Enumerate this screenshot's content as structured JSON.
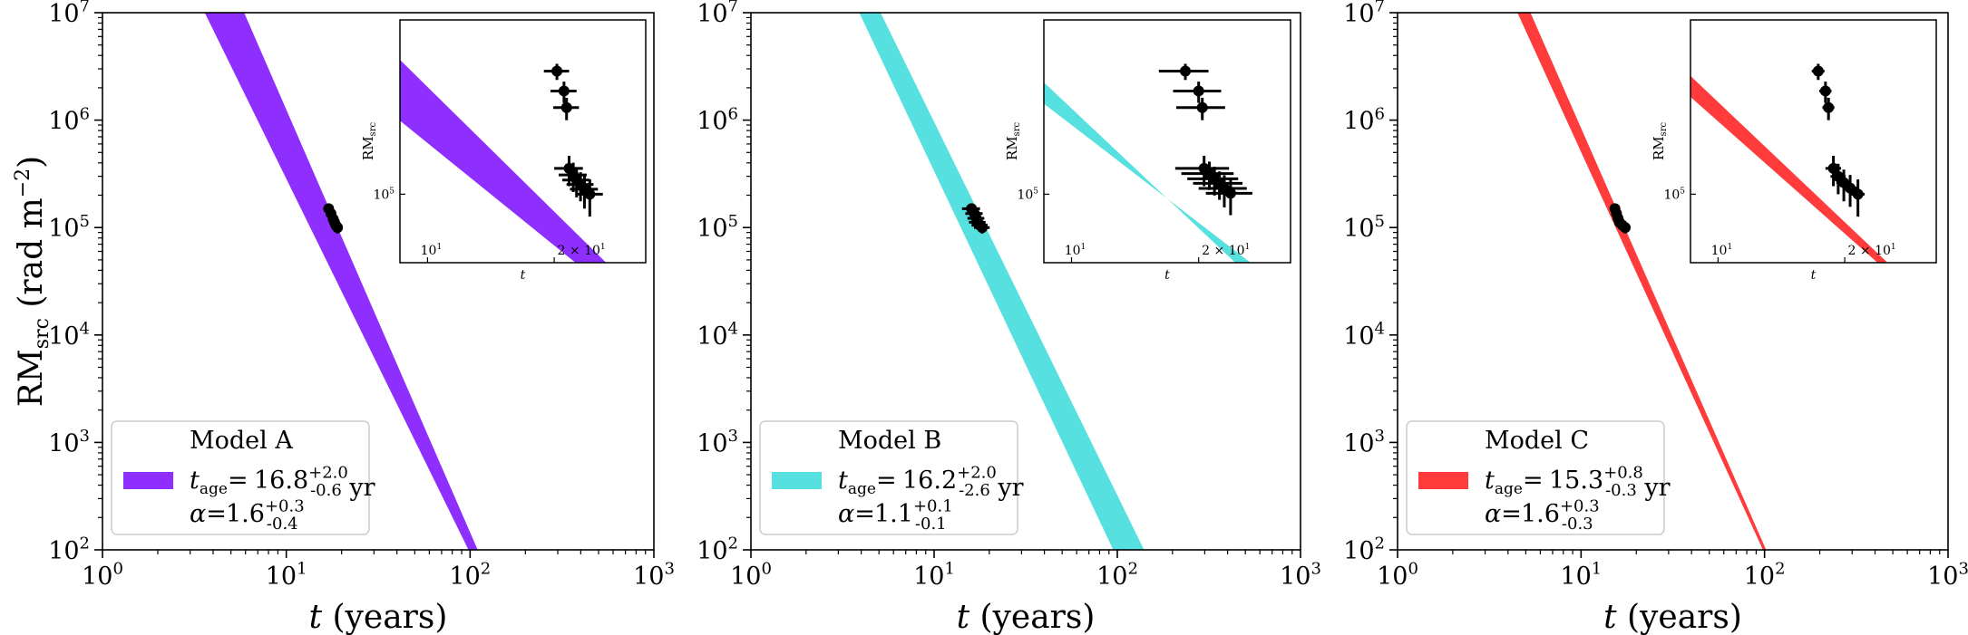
{
  "chart_data": [
    {
      "type": "area",
      "xlabel": "t (years)",
      "ylabel": "RM_src (rad m^-2)",
      "xscale": "log",
      "yscale": "log",
      "xlim": [
        1,
        1000
      ],
      "ylim": [
        100,
        10000000
      ],
      "x_ticks": [
        "10^0",
        "10^1",
        "10^2",
        "10^3"
      ],
      "y_ticks": [
        "10^2",
        "10^3",
        "10^4",
        "10^5",
        "10^6",
        "10^7"
      ],
      "legend": {
        "placement": "lower-left",
        "label": "Model A",
        "t_age": "16.8^{+2.0}_{-0.6} yr",
        "alpha": "1.6^{+0.3}_{-0.4}"
      },
      "band_color": "#8f2fff",
      "band": {
        "x": [
          3.6,
          110
        ],
        "upper": [
          10000000,
          100
        ],
        "x_lower": [
          5.9,
          98
        ],
        "lower": [
          10000000,
          100
        ]
      },
      "points": [
        {
          "t": 17.0,
          "rm": 150000,
          "xerr": 1.0,
          "yerr": 15000
        },
        {
          "t": 17.5,
          "rm": 135000,
          "xerr": 1.0,
          "yerr": 15000
        },
        {
          "t": 18.0,
          "rm": 120000,
          "xerr": 1.0,
          "yerr": 15000
        },
        {
          "t": 18.3,
          "rm": 112000,
          "xerr": 1.0,
          "yerr": 12000
        },
        {
          "t": 18.6,
          "rm": 105000,
          "xerr": 1.0,
          "yerr": 12000
        },
        {
          "t": 19.0,
          "rm": 100000,
          "xerr": 1.0,
          "yerr": 12000
        }
      ],
      "inset": {
        "xlim": [
          8.6,
          33
        ],
        "ylim": [
          21000,
          5300000
        ],
        "xlabel": "t",
        "ylabel": "RM_src",
        "x_ticks": [
          "10^1",
          "2 × 10^1"
        ],
        "y_ticks": [
          "10^5"
        ],
        "points": [
          {
            "t": 20.3,
            "rm": 1650000,
            "xerr": 1.4,
            "yerr": 300000
          },
          {
            "t": 21.1,
            "rm": 1050000,
            "xerr": 1.5,
            "yerr": 250000
          },
          {
            "t": 21.4,
            "rm": 720000,
            "xerr": 1.5,
            "yerr": 180000
          },
          {
            "t": 21.7,
            "rm": 180000,
            "xerr": 1.7,
            "yerr": 60000
          },
          {
            "t": 22.2,
            "rm": 155000,
            "xerr": 1.7,
            "yerr": 50000
          },
          {
            "t": 22.6,
            "rm": 138000,
            "xerr": 1.7,
            "yerr": 45000
          },
          {
            "t": 23.1,
            "rm": 125000,
            "xerr": 1.7,
            "yerr": 40000
          },
          {
            "t": 23.6,
            "rm": 112000,
            "xerr": 1.8,
            "yerr": 40000
          },
          {
            "t": 24.3,
            "rm": 100000,
            "xerr": 1.8,
            "yerr": 40000
          }
        ]
      }
    },
    {
      "type": "area",
      "xlabel": "t (years)",
      "ylabel": "",
      "xscale": "log",
      "yscale": "log",
      "xlim": [
        1,
        1000
      ],
      "ylim": [
        100,
        10000000
      ],
      "x_ticks": [
        "10^0",
        "10^1",
        "10^2",
        "10^3"
      ],
      "y_ticks": [
        "10^2",
        "10^3",
        "10^4",
        "10^5",
        "10^6",
        "10^7"
      ],
      "legend": {
        "placement": "lower-left",
        "label": "Model B",
        "t_age": "16.2^{+2.0}_{-2.6} yr",
        "alpha": "1.1^{+0.1}_{-0.1}"
      },
      "band_color": "#56e0e0",
      "band": {
        "x": [
          3.9,
          140
        ],
        "upper": [
          10000000,
          100
        ],
        "x_lower": [
          5.1,
          95
        ],
        "lower": [
          10000000,
          100
        ]
      },
      "points": [
        {
          "t": 16.0,
          "rm": 150000,
          "xerr": 1.8,
          "yerr": 15000
        },
        {
          "t": 16.6,
          "rm": 135000,
          "xerr": 1.8,
          "yerr": 15000
        },
        {
          "t": 17.0,
          "rm": 122000,
          "xerr": 1.8,
          "yerr": 15000
        },
        {
          "t": 17.3,
          "rm": 112000,
          "xerr": 1.8,
          "yerr": 12000
        },
        {
          "t": 17.8,
          "rm": 105000,
          "xerr": 1.8,
          "yerr": 12000
        },
        {
          "t": 18.3,
          "rm": 100000,
          "xerr": 1.8,
          "yerr": 12000
        }
      ],
      "inset": {
        "xlim": [
          8.6,
          33
        ],
        "ylim": [
          21000,
          5300000
        ],
        "xlabel": "t",
        "ylabel": "RM_src",
        "x_ticks": [
          "10^1",
          "2 × 10^1"
        ],
        "y_ticks": [
          "10^5"
        ],
        "points": [
          {
            "t": 18.6,
            "rm": 1650000,
            "xerr": 2.5,
            "yerr": 300000
          },
          {
            "t": 20.0,
            "rm": 1050000,
            "xerr": 2.6,
            "yerr": 250000
          },
          {
            "t": 20.4,
            "rm": 720000,
            "xerr": 2.7,
            "yerr": 180000
          },
          {
            "t": 20.6,
            "rm": 180000,
            "xerr": 3.0,
            "yerr": 60000
          },
          {
            "t": 21.2,
            "rm": 160000,
            "xerr": 3.0,
            "yerr": 50000
          },
          {
            "t": 21.8,
            "rm": 142000,
            "xerr": 3.0,
            "yerr": 45000
          },
          {
            "t": 22.4,
            "rm": 128000,
            "xerr": 3.0,
            "yerr": 40000
          },
          {
            "t": 23.0,
            "rm": 114000,
            "xerr": 3.0,
            "yerr": 40000
          },
          {
            "t": 23.8,
            "rm": 102000,
            "xerr": 3.0,
            "yerr": 40000
          }
        ]
      }
    },
    {
      "type": "area",
      "xlabel": "t (years)",
      "ylabel": "",
      "xscale": "log",
      "yscale": "log",
      "xlim": [
        1,
        1000
      ],
      "ylim": [
        100,
        10000000
      ],
      "x_ticks": [
        "10^0",
        "10^1",
        "10^2",
        "10^3"
      ],
      "y_ticks": [
        "10^2",
        "10^3",
        "10^4",
        "10^5",
        "10^6",
        "10^7"
      ],
      "legend": {
        "placement": "lower-left",
        "label": "Model C",
        "t_age": "15.3^{+0.8}_{-0.3} yr",
        "alpha": "1.6^{+0.3}_{-0.3}"
      },
      "band_color": "#ff3b3b",
      "band": {
        "x": [
          4.5,
          102
        ],
        "upper": [
          10000000,
          100
        ],
        "x_lower": [
          5.3,
          98
        ],
        "lower": [
          10000000,
          100
        ]
      },
      "points": [
        {
          "t": 15.3,
          "rm": 150000,
          "xerr": 0.5,
          "yerr": 15000
        },
        {
          "t": 15.6,
          "rm": 135000,
          "xerr": 0.5,
          "yerr": 15000
        },
        {
          "t": 15.9,
          "rm": 122000,
          "xerr": 0.5,
          "yerr": 15000
        },
        {
          "t": 16.2,
          "rm": 112000,
          "xerr": 0.5,
          "yerr": 12000
        },
        {
          "t": 16.8,
          "rm": 105000,
          "xerr": 0.5,
          "yerr": 12000
        },
        {
          "t": 17.4,
          "rm": 100000,
          "xerr": 0.5,
          "yerr": 12000
        }
      ],
      "inset": {
        "xlim": [
          8.6,
          33
        ],
        "ylim": [
          21000,
          5300000
        ],
        "xlabel": "t",
        "ylabel": "RM_src",
        "x_ticks": [
          "10^1",
          "2 × 10^1"
        ],
        "y_ticks": [
          "10^5"
        ],
        "points": [
          {
            "t": 17.3,
            "rm": 1650000,
            "xerr": 0.6,
            "yerr": 300000
          },
          {
            "t": 18.0,
            "rm": 1050000,
            "xerr": 0.6,
            "yerr": 250000
          },
          {
            "t": 18.3,
            "rm": 720000,
            "xerr": 0.6,
            "yerr": 180000
          },
          {
            "t": 18.8,
            "rm": 180000,
            "xerr": 0.8,
            "yerr": 60000
          },
          {
            "t": 19.3,
            "rm": 150000,
            "xerr": 0.8,
            "yerr": 50000
          },
          {
            "t": 19.9,
            "rm": 130000,
            "xerr": 0.8,
            "yerr": 45000
          },
          {
            "t": 20.6,
            "rm": 115000,
            "xerr": 0.8,
            "yerr": 40000
          },
          {
            "t": 21.5,
            "rm": 100000,
            "xerr": 0.8,
            "yerr": 40000
          }
        ]
      }
    }
  ]
}
